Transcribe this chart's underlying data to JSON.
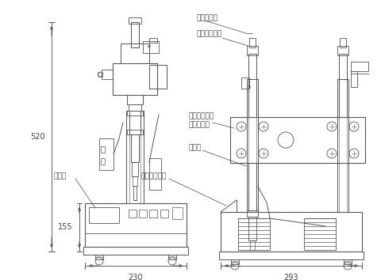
{
  "background_color": "#ffffff",
  "line_color": "#555555",
  "dim_color": "#444444",
  "text_color": "#000000",
  "labels": {
    "air_damper": "エアダンパ",
    "up_down_handle": "上下ハンドル",
    "flexible_joint_1": "フレキシブル",
    "flexible_joint_2": "ジョイント",
    "sensor": "センサ",
    "display": "表示部",
    "switch": "操作スイッチ",
    "dim_520": "520",
    "dim_155": "155",
    "dim_230": "230",
    "dim_293": "293"
  },
  "figsize": [
    4.8,
    3.54
  ],
  "dpi": 100
}
